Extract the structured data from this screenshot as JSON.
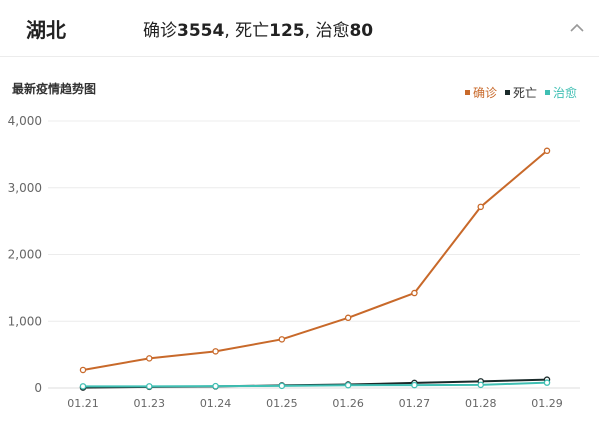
{
  "header": {
    "region": "湖北",
    "summary": {
      "confirmed_label": "确诊",
      "confirmed_value": "3554",
      "sep1": ", ",
      "deaths_label": "死亡",
      "deaths_value": "125",
      "sep2": ", ",
      "cured_label": "治愈",
      "cured_value": "80"
    }
  },
  "chart_section": {
    "title": "最新疫情趋势图"
  },
  "colors": {
    "confirmed": "#c8692a",
    "deaths": "#1a2a2a",
    "cured": "#3fbfb3",
    "grid": "#ececec",
    "axis_text": "#666666"
  },
  "chart_data": {
    "type": "line",
    "title": "最新疫情趋势图",
    "categories": [
      "01.21",
      "01.23",
      "01.24",
      "01.25",
      "01.26",
      "01.27",
      "01.28",
      "01.29"
    ],
    "series": [
      {
        "name": "确诊",
        "color_key": "confirmed",
        "values": [
          270,
          444,
          549,
          729,
          1052,
          1423,
          2714,
          3554
        ]
      },
      {
        "name": "死亡",
        "color_key": "deaths",
        "values": [
          6,
          17,
          24,
          39,
          52,
          76,
          100,
          125
        ]
      },
      {
        "name": "治愈",
        "color_key": "cured",
        "values": [
          25,
          25,
          28,
          32,
          42,
          44,
          47,
          80
        ]
      }
    ],
    "ylim": [
      0,
      4000
    ],
    "yticks": [
      0,
      1000,
      2000,
      3000,
      4000
    ],
    "ytick_labels": [
      "0",
      "1,000",
      "2,000",
      "3,000",
      "4,000"
    ],
    "grid": true,
    "legend_position": "top-right"
  }
}
